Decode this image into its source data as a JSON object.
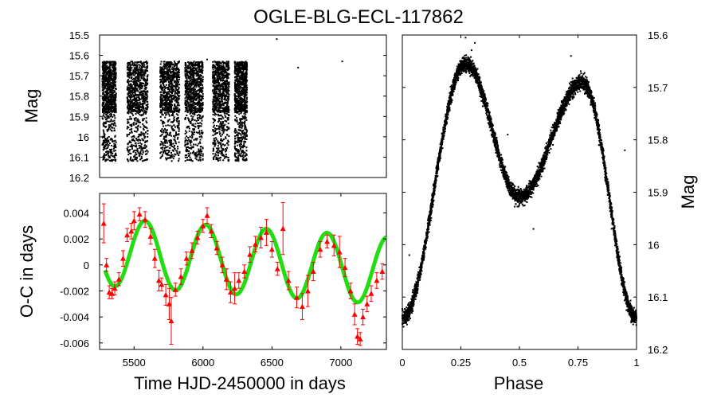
{
  "chart_data": {
    "title": "OGLE-BLG-ECL-117862",
    "panels": [
      {
        "id": "lightcurve-time",
        "type": "scatter",
        "xlim": [
          5250,
          7330
        ],
        "ylim": [
          16.2,
          15.5
        ],
        "ylabel": "Mag",
        "yticks": [
          15.5,
          15.6,
          15.7,
          15.8,
          15.9,
          16.0,
          16.1,
          16.2
        ],
        "ytick_labels": [
          "15.5",
          "15.6",
          "15.7",
          "15.8",
          "15.9",
          "16",
          "16.1",
          "16.2"
        ],
        "seasons": [
          {
            "start": 5270,
            "end": 5370
          },
          {
            "start": 5450,
            "end": 5600
          },
          {
            "start": 5690,
            "end": 5830
          },
          {
            "start": 5870,
            "end": 6000
          },
          {
            "start": 6070,
            "end": 6190
          },
          {
            "start": 6230,
            "end": 6320
          }
        ],
        "mag_range": [
          15.63,
          16.12
        ]
      },
      {
        "id": "o-c",
        "type": "scatter+line",
        "xlim": [
          5250,
          7330
        ],
        "ylim": [
          -0.0065,
          0.0055
        ],
        "xlabel": "Time HJD-2450000 in days",
        "ylabel": "O-C in days",
        "xticks": [
          5500,
          6000,
          6500,
          7000
        ],
        "xtick_labels": [
          "5500",
          "6000",
          "6500",
          "7000"
        ],
        "yticks": [
          0.004,
          0.002,
          0.0,
          -0.002,
          -0.004,
          -0.006
        ],
        "ytick_labels": [
          "0.004",
          "0.002",
          "0",
          "-0.002",
          "-0.004",
          "-0.006"
        ],
        "fit_model": {
          "description": "sinusoid with decaying mean",
          "period_days": 440,
          "amplitude": 0.0026,
          "phase_ref_hjd": 5580,
          "offset_start": 0.001,
          "offset_slope_per_day": -7e-07
        },
        "points": [
          {
            "x": 5280,
            "y": 0.0032,
            "err": 0.0015
          },
          {
            "x": 5300,
            "y": 0.0,
            "err": 0.0005
          },
          {
            "x": 5320,
            "y": -0.0021,
            "err": 0.0005
          },
          {
            "x": 5340,
            "y": -0.0022,
            "err": 0.0004
          },
          {
            "x": 5360,
            "y": -0.0018,
            "err": 0.0005
          },
          {
            "x": 5390,
            "y": -0.0011,
            "err": 0.0005
          },
          {
            "x": 5420,
            "y": 0.0005,
            "err": 0.0006
          },
          {
            "x": 5450,
            "y": 0.0023,
            "err": 0.0005
          },
          {
            "x": 5480,
            "y": 0.0026,
            "err": 0.0006
          },
          {
            "x": 5500,
            "y": 0.0034,
            "err": 0.0007
          },
          {
            "x": 5540,
            "y": 0.0039,
            "err": 0.0005
          },
          {
            "x": 5580,
            "y": 0.0035,
            "err": 0.0006
          },
          {
            "x": 5620,
            "y": 0.0022,
            "err": 0.0006
          },
          {
            "x": 5650,
            "y": 0.0005,
            "err": 0.0007
          },
          {
            "x": 5680,
            "y": -0.0012,
            "err": 0.0008
          },
          {
            "x": 5700,
            "y": -0.0015,
            "err": 0.0005
          },
          {
            "x": 5730,
            "y": -0.0023,
            "err": 0.0008
          },
          {
            "x": 5755,
            "y": -0.003,
            "err": 0.0012
          },
          {
            "x": 5770,
            "y": -0.0043,
            "err": 0.0018
          },
          {
            "x": 5800,
            "y": -0.0019,
            "err": 0.0005
          },
          {
            "x": 5840,
            "y": -0.0009,
            "err": 0.0006
          },
          {
            "x": 5880,
            "y": 0.0005,
            "err": 0.0005
          },
          {
            "x": 5920,
            "y": 0.0011,
            "err": 0.0006
          },
          {
            "x": 5960,
            "y": 0.0021,
            "err": 0.0005
          },
          {
            "x": 6000,
            "y": 0.003,
            "err": 0.0005
          },
          {
            "x": 6030,
            "y": 0.0038,
            "err": 0.0006
          },
          {
            "x": 6060,
            "y": 0.0026,
            "err": 0.0005
          },
          {
            "x": 6100,
            "y": 0.0013,
            "err": 0.0005
          },
          {
            "x": 6140,
            "y": 0.0,
            "err": 0.0006
          },
          {
            "x": 6170,
            "y": -0.0011,
            "err": 0.0008
          },
          {
            "x": 6200,
            "y": -0.0021,
            "err": 0.0008
          },
          {
            "x": 6230,
            "y": -0.0018,
            "err": 0.0012
          },
          {
            "x": 6260,
            "y": -0.0012,
            "err": 0.0006
          },
          {
            "x": 6300,
            "y": -0.0005,
            "err": 0.0005
          },
          {
            "x": 6340,
            "y": 0.0008,
            "err": 0.0006
          },
          {
            "x": 6380,
            "y": 0.0016,
            "err": 0.0006
          },
          {
            "x": 6420,
            "y": 0.0021,
            "err": 0.0008
          },
          {
            "x": 6460,
            "y": 0.0025,
            "err": 0.001
          },
          {
            "x": 6500,
            "y": 0.0012,
            "err": 0.0006
          },
          {
            "x": 6540,
            "y": -0.0003,
            "err": 0.0005
          },
          {
            "x": 6580,
            "y": 0.0028,
            "err": 0.002
          },
          {
            "x": 6620,
            "y": -0.0012,
            "err": 0.0007
          },
          {
            "x": 6680,
            "y": -0.0025,
            "err": 0.0008
          },
          {
            "x": 6720,
            "y": -0.0032,
            "err": 0.001
          },
          {
            "x": 6760,
            "y": -0.002,
            "err": 0.0012
          },
          {
            "x": 6800,
            "y": -0.0005,
            "err": 0.0007
          },
          {
            "x": 6850,
            "y": 0.0012,
            "err": 0.0006
          },
          {
            "x": 6900,
            "y": 0.0018,
            "err": 0.0005
          },
          {
            "x": 6950,
            "y": 0.0015,
            "err": 0.0008
          },
          {
            "x": 6990,
            "y": 0.001,
            "err": 0.0012
          },
          {
            "x": 7030,
            "y": -0.0002,
            "err": 0.0007
          },
          {
            "x": 7070,
            "y": -0.002,
            "err": 0.0006
          },
          {
            "x": 7100,
            "y": -0.0038,
            "err": 0.0008
          },
          {
            "x": 7120,
            "y": -0.0055,
            "err": 0.0006
          },
          {
            "x": 7140,
            "y": -0.0057,
            "err": 0.0005
          },
          {
            "x": 7160,
            "y": -0.004,
            "err": 0.0006
          },
          {
            "x": 7190,
            "y": -0.003,
            "err": 0.0006
          },
          {
            "x": 7220,
            "y": -0.0022,
            "err": 0.0006
          },
          {
            "x": 7260,
            "y": -0.0012,
            "err": 0.0006
          },
          {
            "x": 7300,
            "y": -0.0005,
            "err": 0.0006
          }
        ]
      },
      {
        "id": "lightcurve-phase",
        "type": "scatter",
        "xlim": [
          0,
          1
        ],
        "ylim": [
          16.2,
          15.6
        ],
        "xlabel": "Phase",
        "ylabel": "Mag",
        "xticks": [
          0,
          0.25,
          0.5,
          0.75,
          1
        ],
        "xtick_labels": [
          "0",
          "0.25",
          "0.5",
          "0.75",
          "1"
        ],
        "yticks": [
          15.6,
          15.7,
          15.8,
          15.9,
          16.0,
          16.1,
          16.2
        ],
        "ytick_labels": [
          "15.6",
          "15.7",
          "15.8",
          "15.9",
          "16",
          "16.1",
          "16.2"
        ],
        "curve_model": {
          "description": "eclipsing binary phased light curve",
          "primary_min_mag": 16.14,
          "secondary_min_mag": 15.91,
          "max1_mag": 15.655,
          "max2_mag": 15.69,
          "secondary_phase": 0.5,
          "max1_phase": 0.27,
          "max2_phase": 0.77
        }
      }
    ],
    "colors": {
      "points": "#000000",
      "oc_points": "#ff0000",
      "fit": "#22dd11"
    }
  }
}
